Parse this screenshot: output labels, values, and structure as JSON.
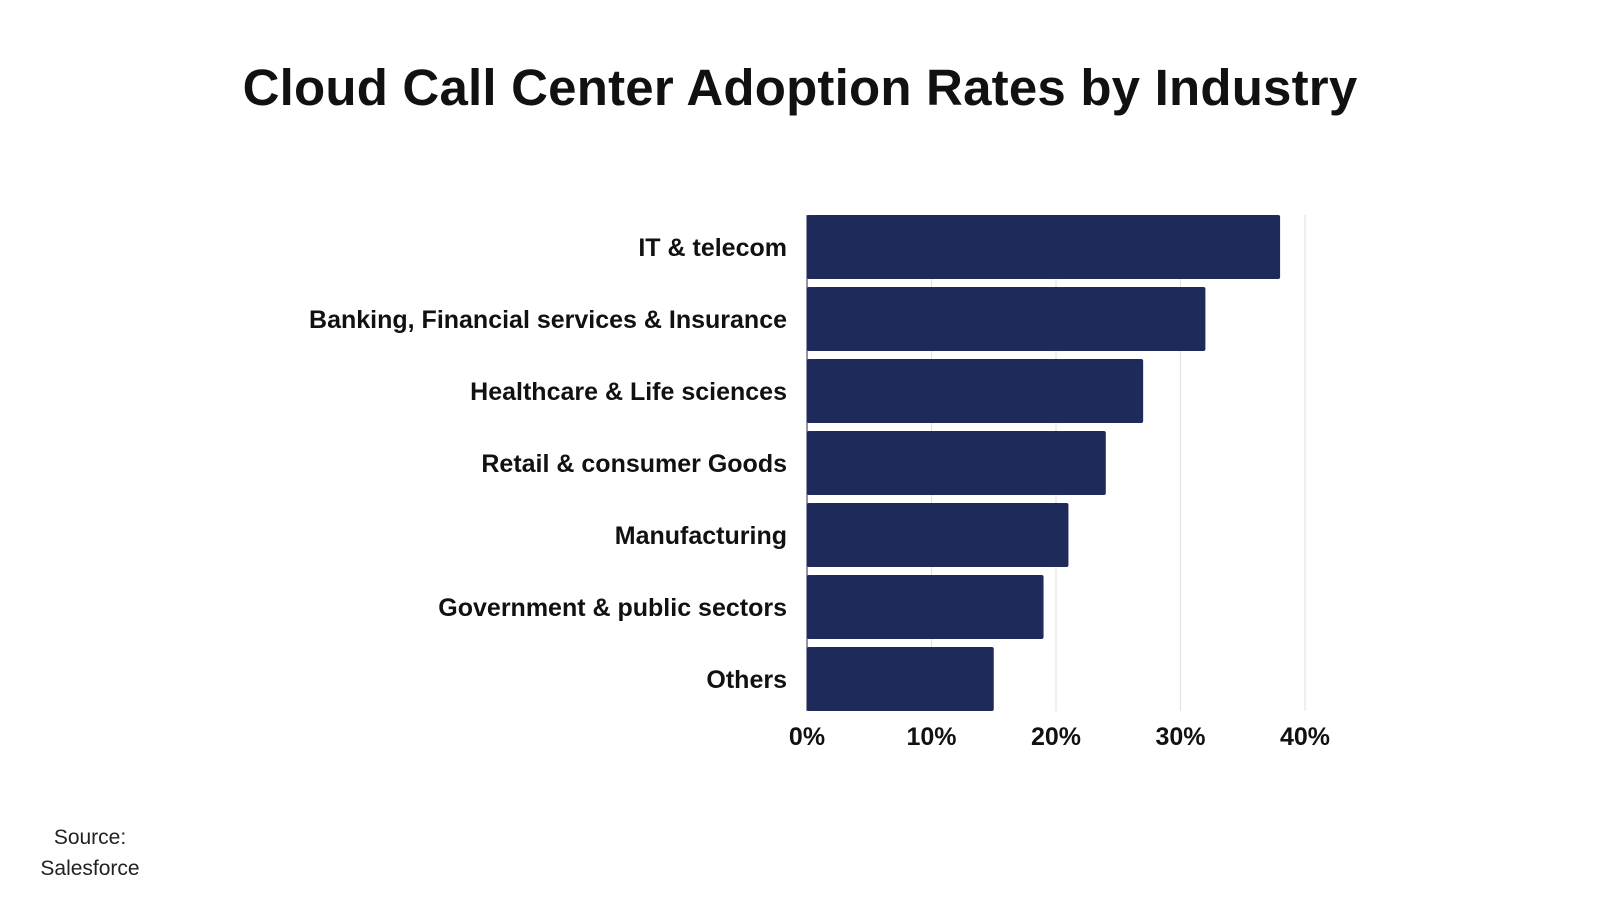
{
  "chart_data": {
    "type": "bar",
    "orientation": "horizontal",
    "title": "Cloud Call Center Adoption Rates by Industry",
    "categories": [
      "IT & telecom",
      "Banking, Financial services & Insurance",
      "Healthcare & Life sciences",
      "Retail & consumer Goods",
      "Manufacturing",
      "Government & public sectors",
      "Others"
    ],
    "values": [
      38,
      32,
      27,
      24,
      21,
      19,
      15
    ],
    "unit": "%",
    "xlim": [
      0,
      40
    ],
    "xticks": [
      "0%",
      "10%",
      "20%",
      "30%",
      "40%"
    ],
    "xlabel": "",
    "ylabel": "",
    "grid": true,
    "legend": "none",
    "bar_color": "#1e2a5a",
    "grid_color": "#e4e4e4"
  },
  "footer": {
    "source_label": "Source:",
    "source_name": "Salesforce"
  }
}
